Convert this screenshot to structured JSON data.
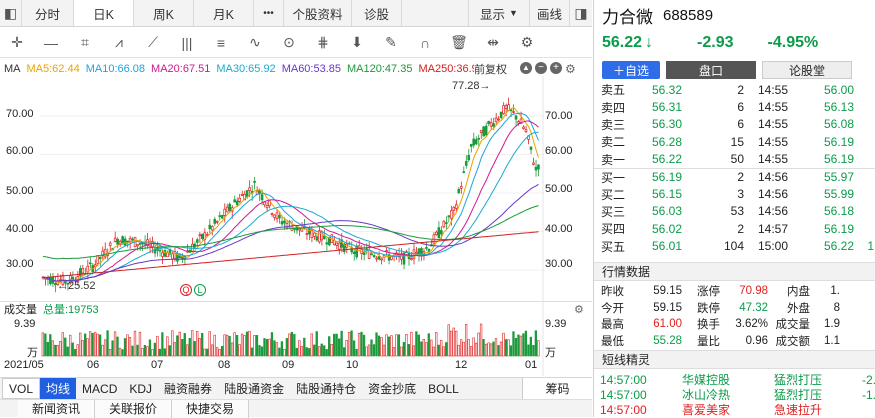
{
  "tabs": {
    "fenshi": "分时",
    "rik": "日K",
    "zhouk": "周K",
    "yuek": "月K",
    "more": "•••",
    "profile": "个股资料",
    "diag": "诊股",
    "display": "显示",
    "draw": "画线"
  },
  "legend": {
    "ma": "MA",
    "ma5": "MA5:62.44",
    "ma10": "MA10:66.08",
    "ma20": "MA20:67.51",
    "ma30": "MA30:65.92",
    "ma60": "MA60:53.85",
    "ma120": "MA120:47.35",
    "ma250": "MA250:36.98",
    "fq": "前复权"
  },
  "chart": {
    "yticks": [
      "70.00",
      "60.00",
      "50.00",
      "40.00",
      "30.00"
    ],
    "high": "77.28→",
    "low": "←25.52",
    "vol_label": "成交量",
    "vol_total": "总量:19753",
    "vol_max": "9.39",
    "vol_unit": "万",
    "xlabels": [
      "2021/05",
      "06",
      "07",
      "08",
      "09",
      "10",
      "12",
      "01"
    ]
  },
  "bottom_tabs": [
    "VOL",
    "均线",
    "MACD",
    "KDJ",
    "融资融券",
    "陆股通资金",
    "陆股通持仓",
    "资金抄底",
    "BOLL"
  ],
  "bottom_right": "筹码",
  "news_tabs": [
    "新闻资讯",
    "关联报价",
    "快捷交易"
  ],
  "stock": {
    "name": "力合微",
    "code": "688589",
    "price": "56.22",
    "arrow": "↓",
    "change": "-2.93",
    "pct": "-4.95%"
  },
  "actions": {
    "add": "＋自选",
    "pankou": "盘口",
    "lungu": "论股堂"
  },
  "sell": [
    {
      "l": "卖五",
      "p": "56.32",
      "v": "2"
    },
    {
      "l": "卖四",
      "p": "56.31",
      "v": "6"
    },
    {
      "l": "卖三",
      "p": "56.30",
      "v": "6"
    },
    {
      "l": "卖二",
      "p": "56.28",
      "v": "15"
    },
    {
      "l": "卖一",
      "p": "56.22",
      "v": "50"
    }
  ],
  "buy": [
    {
      "l": "买一",
      "p": "56.19",
      "v": "2"
    },
    {
      "l": "买二",
      "p": "56.15",
      "v": "3"
    },
    {
      "l": "买三",
      "p": "56.03",
      "v": "53"
    },
    {
      "l": "买四",
      "p": "56.02",
      "v": "2"
    },
    {
      "l": "买五",
      "p": "56.01",
      "v": "104"
    }
  ],
  "ticks": [
    {
      "t": "14:55",
      "p": "56.00"
    },
    {
      "t": "14:55",
      "p": "56.13"
    },
    {
      "t": "14:55",
      "p": "56.08"
    },
    {
      "t": "14:55",
      "p": "56.19"
    },
    {
      "t": "14:55",
      "p": "56.19"
    },
    {
      "t": "14:56",
      "p": "55.97"
    },
    {
      "t": "14:56",
      "p": "55.99"
    },
    {
      "t": "14:56",
      "p": "56.18"
    },
    {
      "t": "14:57",
      "p": "56.19"
    },
    {
      "t": "15:00",
      "p": "56.22"
    }
  ],
  "tick_extra": "1",
  "hq_title": "行情数据",
  "hq": [
    {
      "a": "昨收",
      "b": "59.15",
      "c": "涨停",
      "d": "70.98",
      "e": "内盘",
      "f": "1."
    },
    {
      "a": "今开",
      "b": "59.15",
      "c": "跌停",
      "d": "47.32",
      "e": "外盘",
      "f": "8"
    },
    {
      "a": "最高",
      "b": "61.00",
      "c": "换手",
      "d": "3.62%",
      "e": "成交量",
      "f": "1.9"
    },
    {
      "a": "最低",
      "b": "55.28",
      "c": "量比",
      "d": "0.96",
      "e": "成交额",
      "f": "1.1"
    }
  ],
  "dx_title": "短线精灵",
  "dx": [
    {
      "t": "14:57:00",
      "n": "华媒控股",
      "s": "猛烈打压",
      "v": "-2."
    },
    {
      "t": "14:57:00",
      "n": "冰山冷热",
      "s": "猛烈打压",
      "v": "-1."
    },
    {
      "t": "14:57:00",
      "n": "喜爱美家",
      "s": "急速拉升",
      "v": ""
    }
  ]
}
